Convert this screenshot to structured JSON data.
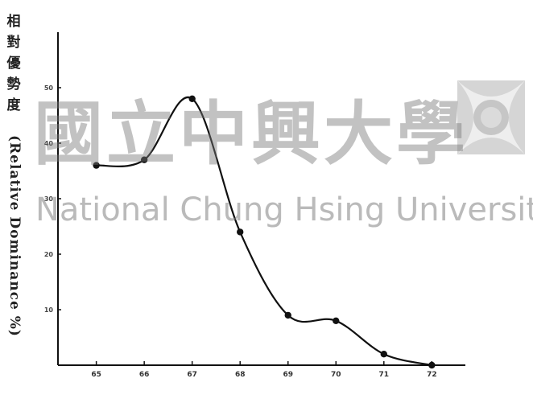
{
  "chart_data": {
    "type": "line",
    "x": [
      65,
      66,
      67,
      68,
      69,
      70,
      71,
      72
    ],
    "series": [
      {
        "values": [
          36,
          37,
          48,
          24,
          9,
          8,
          2,
          0
        ]
      }
    ],
    "xlabel": "",
    "ylabel_cn": "相對優勢度",
    "ylabel_en": "(Relative Dominance %)",
    "y_ticks": [
      "10",
      "20",
      "30",
      "40",
      "50"
    ],
    "x_ticks": [
      "65",
      "66",
      "67",
      "68",
      "69",
      "70",
      "71",
      "72"
    ],
    "xlim": [
      64.2,
      72.7
    ],
    "ylim": [
      0,
      60
    ],
    "grid": false,
    "legend": "none",
    "line_color": "#111111"
  },
  "watermark": {
    "text_cn": "國立中興大學",
    "text_en": "National Chung Hsing University"
  }
}
